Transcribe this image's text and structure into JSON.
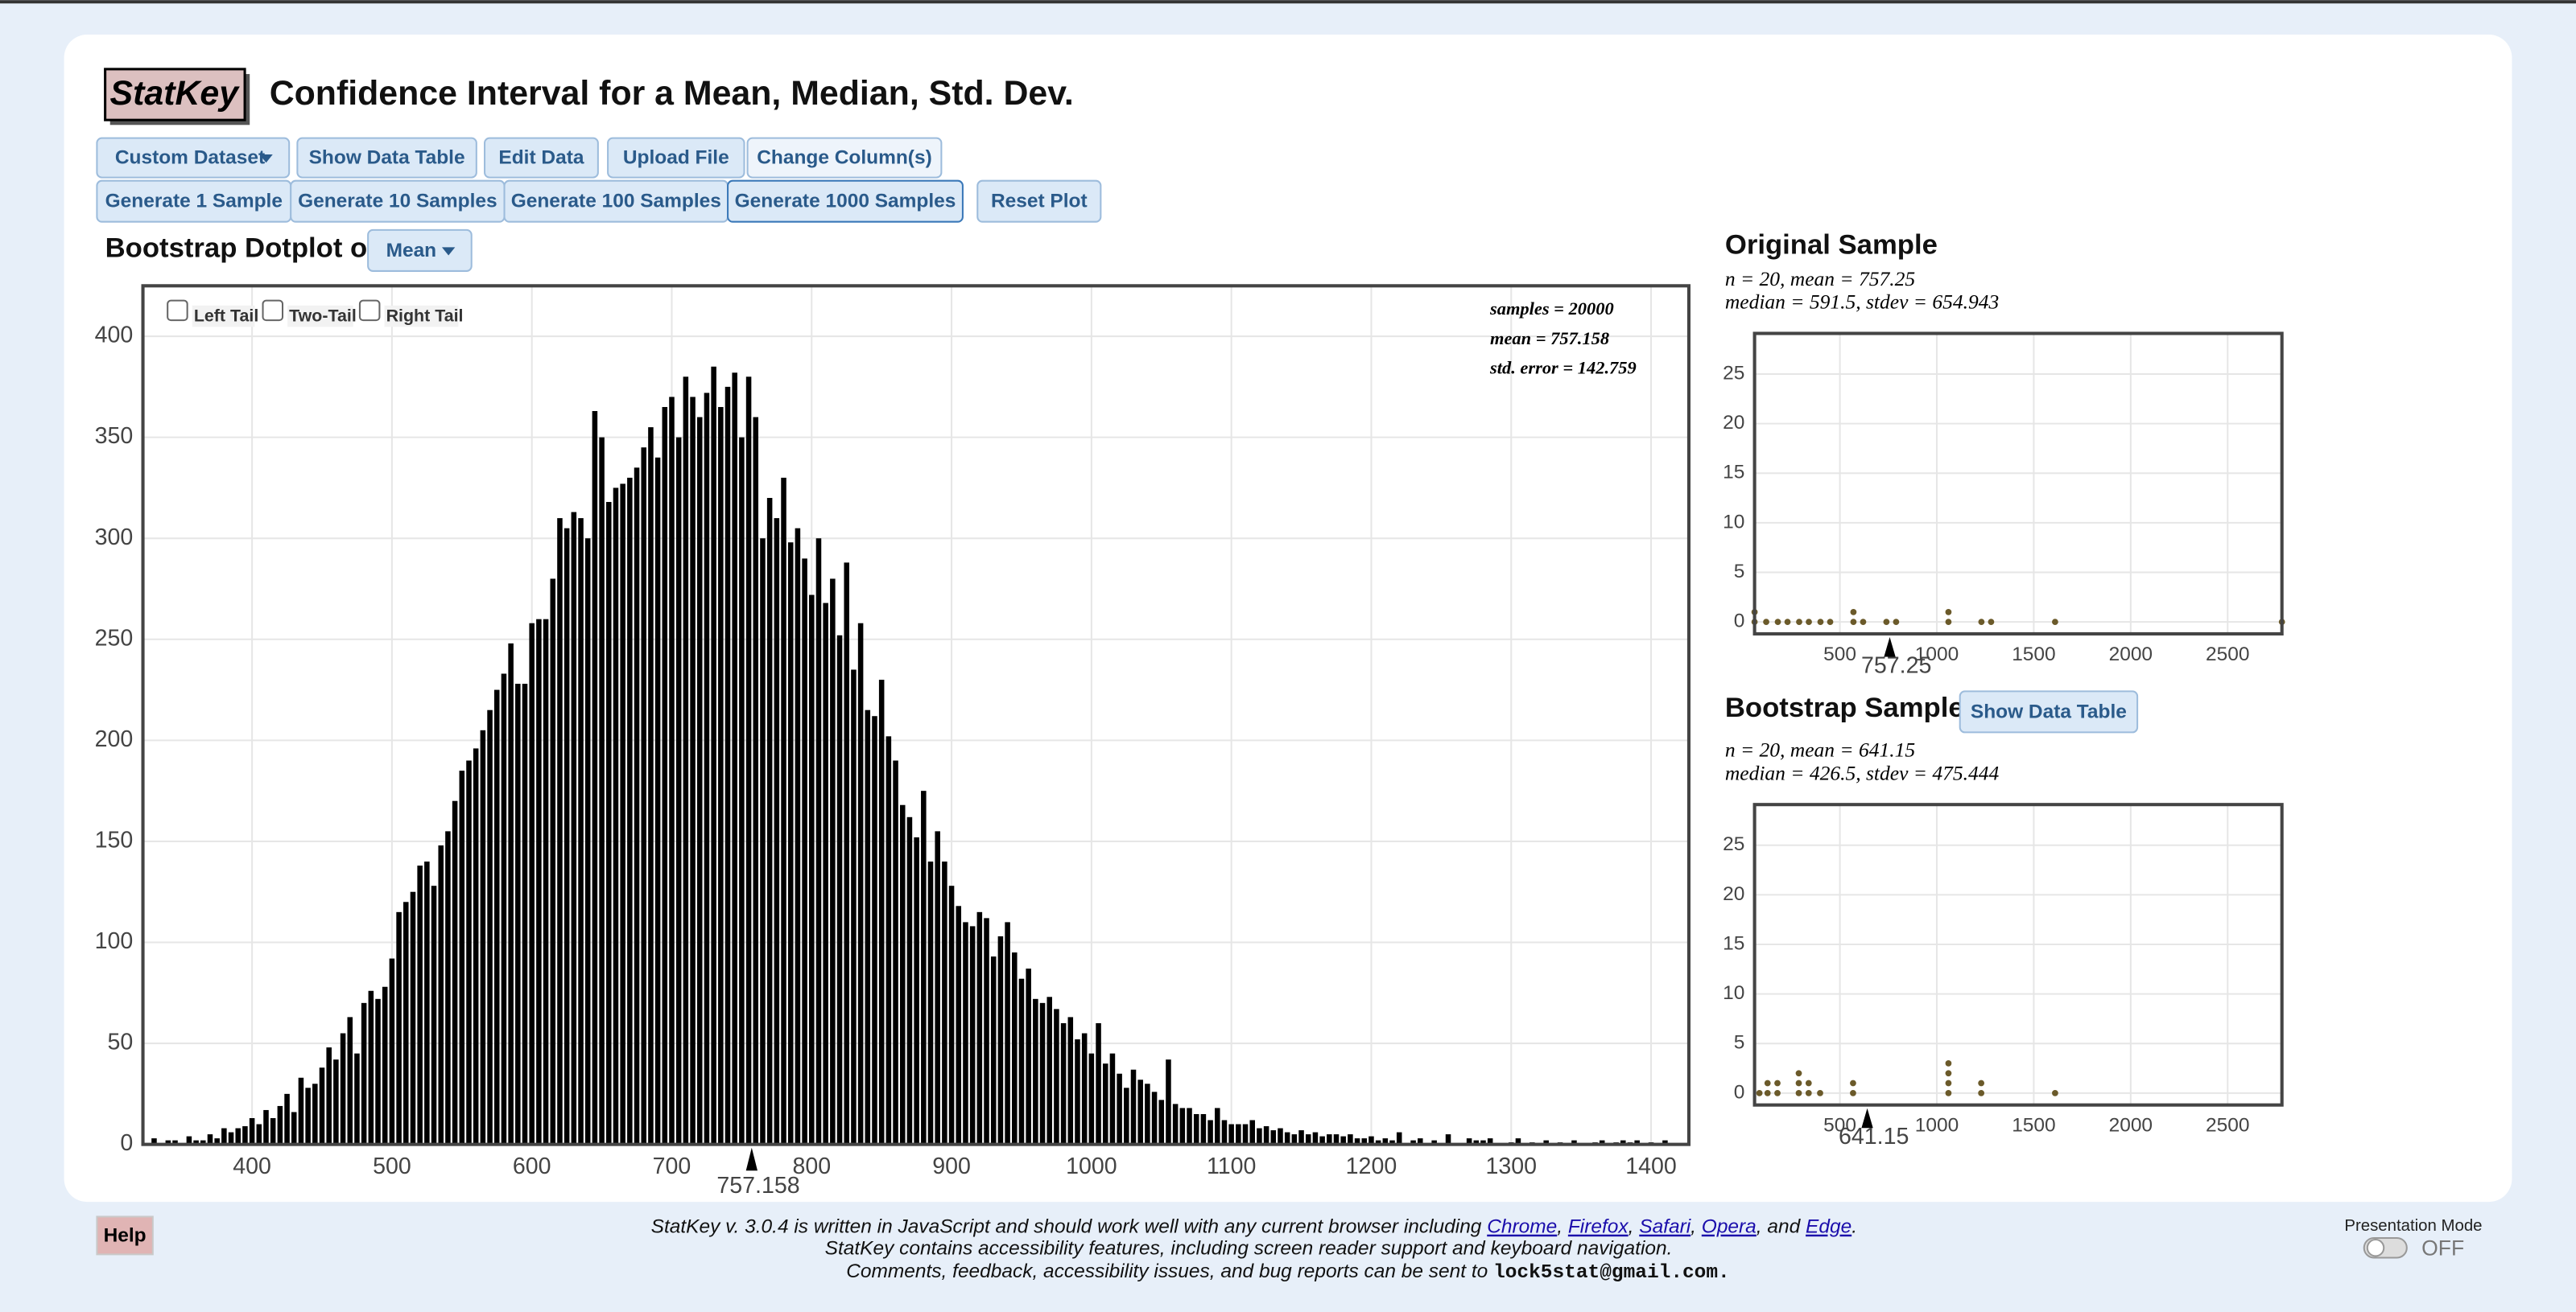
{
  "header": {
    "logo": "StatKey",
    "title": "Confidence Interval for a Mean, Median, Std. Dev."
  },
  "toolbar": {
    "row1": [
      "Custom Dataset",
      "Show Data Table",
      "Edit Data",
      "Upload File",
      "Change Column(s)"
    ],
    "row2": [
      "Generate 1 Sample",
      "Generate 10 Samples",
      "Generate 100 Samples",
      "Generate 1000 Samples",
      "Reset Plot"
    ]
  },
  "dotplot_label": "Bootstrap Dotplot of",
  "statistic": "Mean",
  "tails": [
    "Left Tail",
    "Two-Tail",
    "Right Tail"
  ],
  "chart_data": [
    {
      "type": "bar",
      "color": "#000000",
      "grid": true,
      "xlim": [
        322,
        1427
      ],
      "ylim": [
        0,
        425
      ],
      "xticks": [
        400,
        500,
        600,
        700,
        800,
        900,
        1000,
        1100,
        1200,
        1300,
        1400
      ],
      "yticks": [
        0,
        50,
        100,
        150,
        200,
        250,
        300,
        350,
        400
      ],
      "marker": 757.158,
      "stats": [
        "samples = 20000",
        "mean = 757.158",
        "std. error = 142.759"
      ],
      "x": [
        330,
        335,
        340,
        345,
        350,
        355,
        360,
        365,
        370,
        375,
        380,
        385,
        390,
        395,
        400,
        405,
        410,
        415,
        420,
        425,
        430,
        435,
        440,
        445,
        450,
        455,
        460,
        465,
        470,
        475,
        480,
        485,
        490,
        495,
        500,
        505,
        510,
        515,
        520,
        525,
        530,
        535,
        540,
        545,
        550,
        555,
        560,
        565,
        570,
        575,
        580,
        585,
        590,
        595,
        600,
        605,
        610,
        615,
        620,
        625,
        630,
        635,
        640,
        645,
        650,
        655,
        660,
        665,
        670,
        675,
        680,
        685,
        690,
        695,
        700,
        705,
        710,
        715,
        720,
        725,
        730,
        735,
        740,
        745,
        750,
        755,
        760,
        765,
        770,
        775,
        780,
        785,
        790,
        795,
        800,
        805,
        810,
        815,
        820,
        825,
        830,
        835,
        840,
        845,
        850,
        855,
        860,
        865,
        870,
        875,
        880,
        885,
        890,
        895,
        900,
        905,
        910,
        915,
        920,
        925,
        930,
        935,
        940,
        945,
        950,
        955,
        960,
        965,
        970,
        975,
        980,
        985,
        990,
        995,
        1000,
        1005,
        1010,
        1015,
        1020,
        1025,
        1030,
        1035,
        1040,
        1045,
        1050,
        1055,
        1060,
        1065,
        1070,
        1075,
        1080,
        1085,
        1090,
        1095,
        1100,
        1105,
        1110,
        1115,
        1120,
        1125,
        1130,
        1135,
        1140,
        1145,
        1150,
        1155,
        1160,
        1165,
        1170,
        1175,
        1180,
        1185,
        1190,
        1195,
        1200,
        1205,
        1210,
        1215,
        1220,
        1225,
        1230,
        1235,
        1240,
        1245,
        1250,
        1255,
        1260,
        1265,
        1270,
        1275,
        1280,
        1285,
        1290,
        1295,
        1300,
        1305,
        1310,
        1315,
        1320,
        1325,
        1330,
        1335,
        1340,
        1345,
        1350,
        1355,
        1360,
        1365,
        1370,
        1375,
        1380,
        1385,
        1390,
        1395,
        1400,
        1405,
        1410
      ],
      "values": [
        3,
        0,
        2,
        2,
        0,
        4,
        2,
        2,
        5,
        3,
        8,
        6,
        8,
        9,
        13,
        10,
        17,
        13,
        19,
        25,
        16,
        33,
        28,
        30,
        38,
        48,
        42,
        55,
        63,
        45,
        70,
        76,
        72,
        78,
        92,
        115,
        120,
        125,
        138,
        140,
        128,
        148,
        155,
        170,
        185,
        190,
        196,
        205,
        215,
        225,
        233,
        248,
        228,
        228,
        258,
        260,
        260,
        280,
        310,
        305,
        313,
        310,
        300,
        363,
        350,
        318,
        325,
        327,
        330,
        335,
        345,
        355,
        340,
        365,
        370,
        350,
        380,
        370,
        360,
        372,
        385,
        365,
        375,
        382,
        350,
        380,
        360,
        300,
        320,
        310,
        330,
        298,
        305,
        290,
        272,
        300,
        268,
        280,
        252,
        288,
        235,
        258,
        215,
        212,
        230,
        202,
        190,
        168,
        162,
        152,
        175,
        140,
        155,
        140,
        128,
        118,
        110,
        108,
        115,
        112,
        93,
        103,
        110,
        95,
        82,
        87,
        72,
        70,
        73,
        67,
        60,
        63,
        52,
        55,
        45,
        60,
        40,
        45,
        35,
        28,
        37,
        32,
        30,
        26,
        22,
        42,
        20,
        18,
        18,
        15,
        15,
        12,
        18,
        12,
        10,
        10,
        10,
        12,
        8,
        9,
        7,
        8,
        6,
        5,
        7,
        5,
        6,
        4,
        5,
        5,
        4,
        5,
        3,
        3,
        4,
        2,
        3,
        2,
        6,
        0,
        2,
        3,
        0,
        2,
        0,
        5,
        0,
        0,
        3,
        2,
        2,
        3,
        0,
        0,
        1,
        3,
        0,
        1,
        0,
        2,
        0,
        1,
        0,
        2,
        0,
        0,
        1,
        2,
        0,
        1,
        2,
        1,
        2,
        0,
        1,
        0,
        2
      ]
    },
    {
      "type": "scatter",
      "color": "#6b5a2a",
      "grid": true,
      "xlim": [
        60,
        2780
      ],
      "ylim": [
        -1.2,
        29.1
      ],
      "xticks": [
        500,
        1000,
        1500,
        2000,
        2500
      ],
      "yticks": [
        0,
        5,
        10,
        15,
        20,
        25
      ],
      "marker": 757.25,
      "x": [
        60,
        60,
        120,
        180,
        230,
        290,
        340,
        400,
        450,
        570,
        570,
        620,
        740,
        790,
        1060,
        1060,
        1230,
        1280,
        1610,
        2780
      ],
      "values": [
        0,
        1,
        0,
        0,
        0,
        0,
        0,
        0,
        0,
        0,
        1,
        0,
        0,
        0,
        0,
        1,
        0,
        0,
        0,
        0
      ]
    },
    {
      "type": "scatter",
      "color": "#6b5a2a",
      "grid": true,
      "xlim": [
        60,
        2780
      ],
      "ylim": [
        -1.2,
        29.1
      ],
      "xticks": [
        500,
        1000,
        1500,
        2000,
        2500
      ],
      "yticks": [
        0,
        5,
        10,
        15,
        20,
        25
      ],
      "marker": 641.15,
      "x": [
        85,
        127,
        127,
        178,
        178,
        288,
        288,
        288,
        339,
        339,
        398,
        568,
        568,
        1060,
        1060,
        1060,
        1060,
        1229,
        1229,
        1610
      ],
      "values": [
        0,
        0,
        1,
        0,
        1,
        0,
        1,
        2,
        0,
        1,
        0,
        0,
        1,
        0,
        1,
        2,
        3,
        0,
        1,
        0
      ]
    }
  ],
  "original_sample": {
    "heading": "Original Sample",
    "stats": [
      "n = 20, mean = 757.25",
      "median = 591.5, stdev = 654.943"
    ]
  },
  "bootstrap_sample": {
    "heading": "Bootstrap Sample",
    "button": "Show Data Table",
    "stats": [
      "n = 20, mean = 641.15",
      "median = 426.5, stdev = 475.444"
    ]
  },
  "footer": {
    "help": "Help",
    "line1": [
      "StatKey v. 3.0.4 is written in JavaScript and should work well with any current browser including ",
      "Chrome",
      ", ",
      "Firefox",
      ", ",
      "Safari",
      ", ",
      "Opera",
      ", and ",
      "Edge",
      "."
    ],
    "line2": "StatKey contains accessibility features, including screen reader support and keyboard navigation.",
    "line3": "Comments, feedback, accessibility issues, and bug reports can be sent to ",
    "email": "lock5stat@gmail.com.",
    "presentation_mode": "Presentation Mode",
    "toggle": "OFF"
  }
}
